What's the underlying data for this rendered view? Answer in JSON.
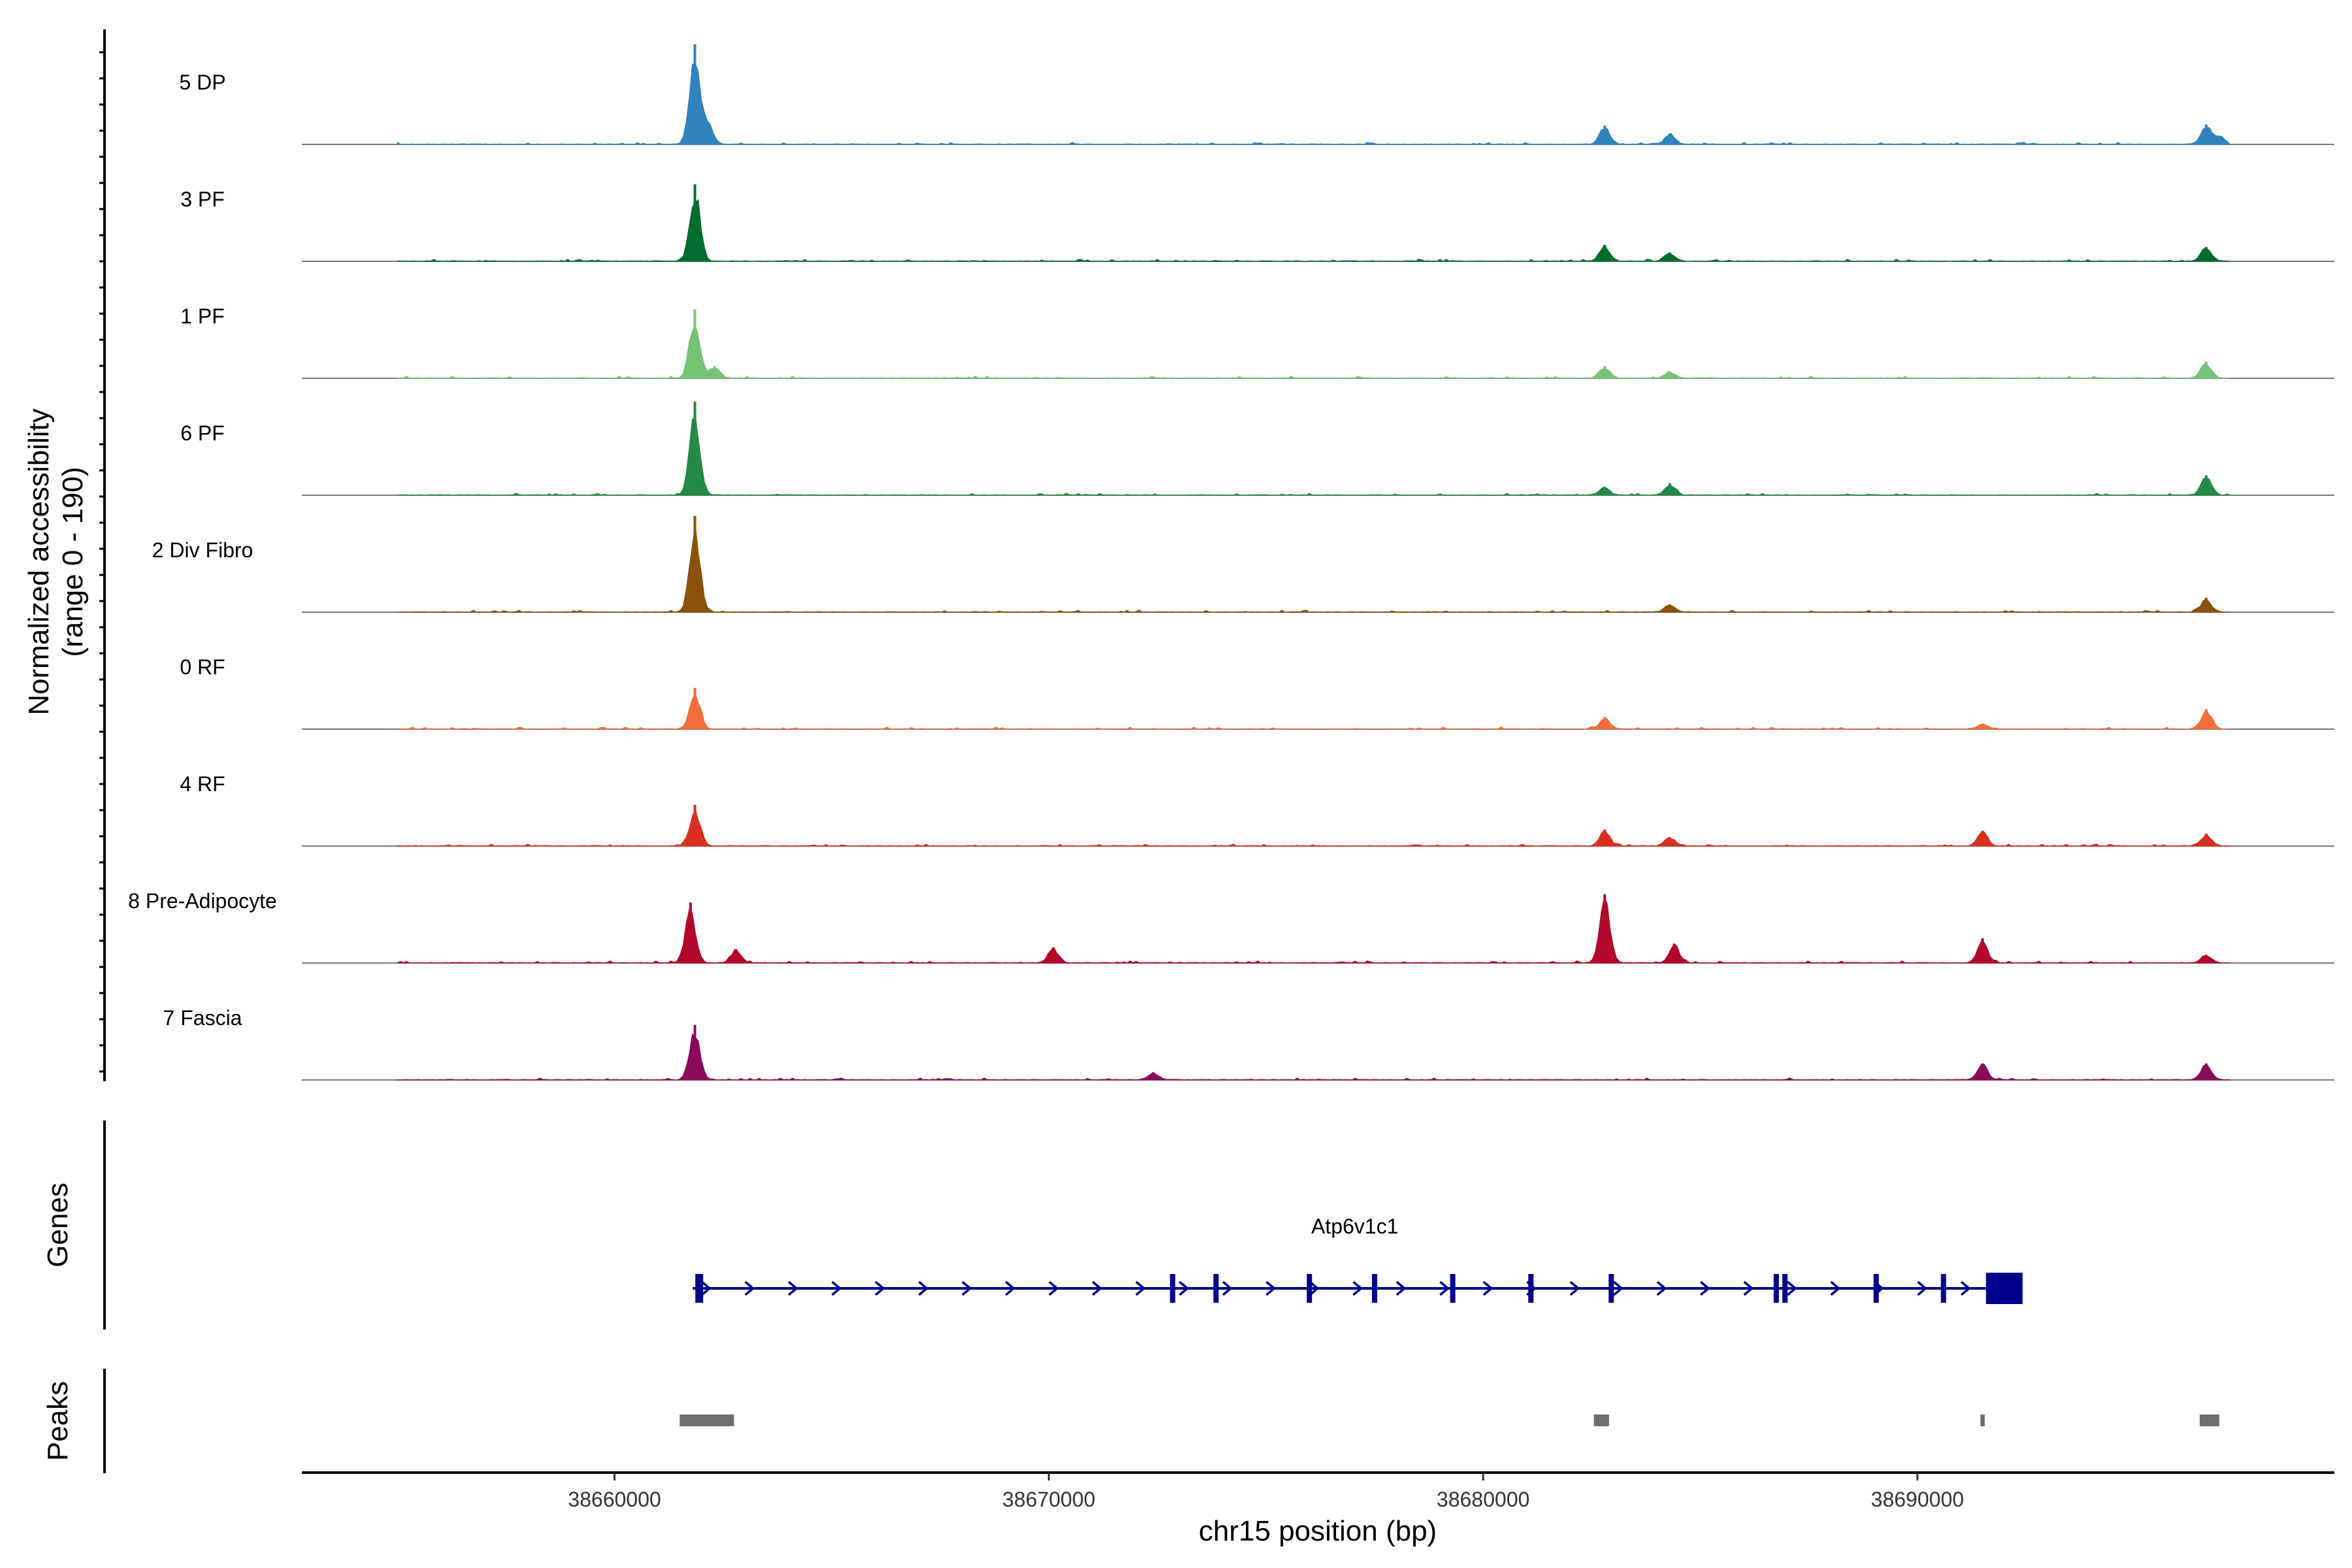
{
  "chart_data": {
    "type": "area",
    "title": "",
    "xlabel": "chr15 position (bp)",
    "ylabel": "Normalized accessibility",
    "ylabel_range": "(range 0 - 190)",
    "xlim": [
      38652800,
      38699600
    ],
    "ylim": [
      0,
      190
    ],
    "x_ticks": [
      38660000,
      38670000,
      38680000,
      38690000
    ],
    "x_tick_labels": [
      "38660000",
      "38670000",
      "38680000",
      "38690000"
    ],
    "tracks": [
      {
        "name": "5 DP",
        "color": "#3182bd",
        "peaks": [
          {
            "x": 38661850,
            "y": 182
          },
          {
            "x": 38662150,
            "y": 40
          },
          {
            "x": 38682800,
            "y": 34
          },
          {
            "x": 38684300,
            "y": 20
          },
          {
            "x": 38696650,
            "y": 36
          },
          {
            "x": 38696950,
            "y": 16
          }
        ]
      },
      {
        "name": "3 PF",
        "color": "#006d2c",
        "peaks": [
          {
            "x": 38661850,
            "y": 140
          },
          {
            "x": 38682800,
            "y": 30
          },
          {
            "x": 38684300,
            "y": 16
          },
          {
            "x": 38696650,
            "y": 26
          }
        ]
      },
      {
        "name": "1 PF",
        "color": "#74c476",
        "peaks": [
          {
            "x": 38661850,
            "y": 125
          },
          {
            "x": 38662300,
            "y": 22
          },
          {
            "x": 38682800,
            "y": 22
          },
          {
            "x": 38684300,
            "y": 12
          },
          {
            "x": 38696650,
            "y": 30
          }
        ]
      },
      {
        "name": "6 PF",
        "color": "#238b45",
        "peaks": [
          {
            "x": 38661850,
            "y": 170
          },
          {
            "x": 38682800,
            "y": 14
          },
          {
            "x": 38684300,
            "y": 22
          },
          {
            "x": 38696650,
            "y": 36
          }
        ]
      },
      {
        "name": "2 Div Fibro",
        "color": "#8c510a",
        "peaks": [
          {
            "x": 38661850,
            "y": 175
          },
          {
            "x": 38684300,
            "y": 14
          },
          {
            "x": 38696650,
            "y": 26
          }
        ]
      },
      {
        "name": "0 RF",
        "color": "#f16d3b",
        "peaks": [
          {
            "x": 38661850,
            "y": 75
          },
          {
            "x": 38682800,
            "y": 22
          },
          {
            "x": 38691500,
            "y": 10
          },
          {
            "x": 38696650,
            "y": 36
          }
        ]
      },
      {
        "name": "4 RF",
        "color": "#d7301f",
        "peaks": [
          {
            "x": 38661850,
            "y": 75
          },
          {
            "x": 38682800,
            "y": 30
          },
          {
            "x": 38684300,
            "y": 16
          },
          {
            "x": 38691500,
            "y": 28
          },
          {
            "x": 38696650,
            "y": 22
          }
        ]
      },
      {
        "name": "8 Pre-Adipocyte",
        "color": "#b2082b",
        "peaks": [
          {
            "x": 38661750,
            "y": 110
          },
          {
            "x": 38662800,
            "y": 25
          },
          {
            "x": 38670100,
            "y": 28
          },
          {
            "x": 38682800,
            "y": 125
          },
          {
            "x": 38684400,
            "y": 35
          },
          {
            "x": 38691500,
            "y": 45
          },
          {
            "x": 38696650,
            "y": 15
          }
        ]
      },
      {
        "name": "7 Fascia",
        "color": "#8c0a5b",
        "peaks": [
          {
            "x": 38661850,
            "y": 100
          },
          {
            "x": 38672400,
            "y": 14
          },
          {
            "x": 38691500,
            "y": 30
          },
          {
            "x": 38696650,
            "y": 30
          }
        ]
      }
    ],
    "genes": {
      "label": "Genes",
      "color": "#00008b",
      "items": [
        {
          "name": "Atp6v1c1",
          "start": 38661800,
          "end": 38692350,
          "exons": [
            38661950,
            38672850,
            38673850,
            38676000,
            38677500,
            38679300,
            38681100,
            38682950,
            38686750,
            38686950,
            38689050,
            38690600,
            38692000
          ]
        }
      ]
    },
    "peak_regions": {
      "label": "Peaks",
      "color": "#6e6e6e",
      "regions": [
        [
          38661500,
          38662750
        ],
        [
          38682550,
          38682900
        ],
        [
          38691450,
          38691550
        ],
        [
          38696500,
          38696950
        ]
      ]
    }
  }
}
